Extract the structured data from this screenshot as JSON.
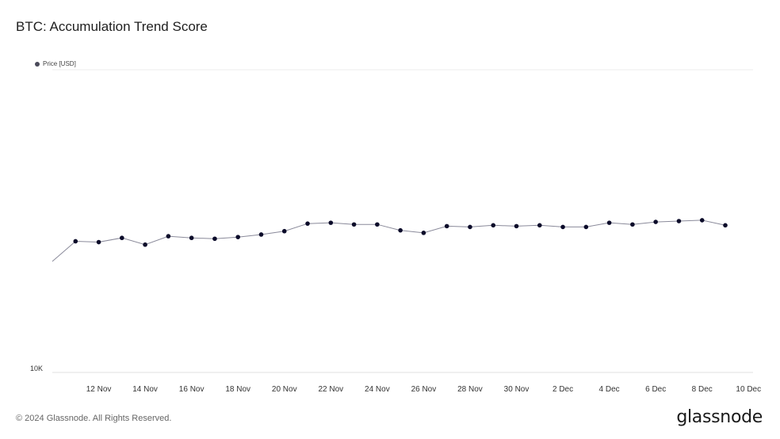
{
  "header": {
    "title": "BTC: Accumulation Trend Score"
  },
  "footer": {
    "copyright": "© 2024 Glassnode. All Rights Reserved.",
    "brand": "glassnode"
  },
  "colors": {
    "line": "#8a8a9a",
    "marker": "#0c0c2a",
    "grid": "#eeeeee"
  },
  "chart_data": {
    "type": "line",
    "title": "BTC: Accumulation Trend Score",
    "series": [
      {
        "name": "Price [USD]",
        "x": [
          "10 Nov",
          "11 Nov",
          "12 Nov",
          "13 Nov",
          "14 Nov",
          "15 Nov",
          "16 Nov",
          "17 Nov",
          "18 Nov",
          "19 Nov",
          "20 Nov",
          "21 Nov",
          "22 Nov",
          "23 Nov",
          "24 Nov",
          "25 Nov",
          "26 Nov",
          "27 Nov",
          "28 Nov",
          "29 Nov",
          "30 Nov",
          "1 Dec",
          "2 Dec",
          "3 Dec",
          "4 Dec",
          "5 Dec",
          "6 Dec",
          "7 Dec",
          "8 Dec",
          "9 Dec"
        ],
        "values": [
          76000,
          88000,
          87500,
          90000,
          86000,
          91000,
          90000,
          89500,
          90500,
          92000,
          94000,
          98500,
          99000,
          98000,
          98000,
          94500,
          93000,
          97000,
          96500,
          97500,
          97000,
          97500,
          96500,
          96500,
          99000,
          98000,
          99500,
          100000,
          100500,
          97500
        ],
        "markers_from_index": 1
      }
    ],
    "yticks": [
      "10K"
    ],
    "ylim": [
      10000,
      190000
    ],
    "xtick_labels": [
      "12 Nov",
      "14 Nov",
      "16 Nov",
      "18 Nov",
      "20 Nov",
      "22 Nov",
      "24 Nov",
      "26 Nov",
      "28 Nov",
      "30 Nov",
      "2 Dec",
      "4 Dec",
      "6 Dec",
      "8 Dec",
      "10 Dec"
    ],
    "grid": true,
    "legend_position": "top-left"
  }
}
